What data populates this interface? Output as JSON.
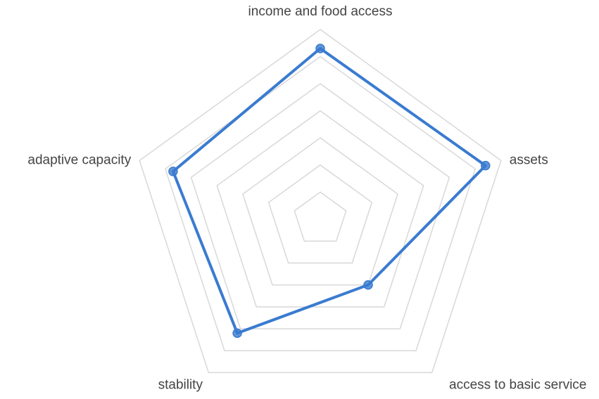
{
  "chart_data": {
    "type": "radar",
    "categories": [
      "income and food access",
      "assets",
      "access to basic service",
      "stability",
      "adaptive capacity"
    ],
    "series": [
      {
        "color": "#3a7bd0",
        "values": [
          6.3,
          6.4,
          3.0,
          5.2,
          5.7
        ]
      }
    ],
    "rlim": [
      0,
      7
    ],
    "rticks": [
      1,
      2,
      3,
      4,
      5,
      6,
      7
    ],
    "grid": true
  }
}
